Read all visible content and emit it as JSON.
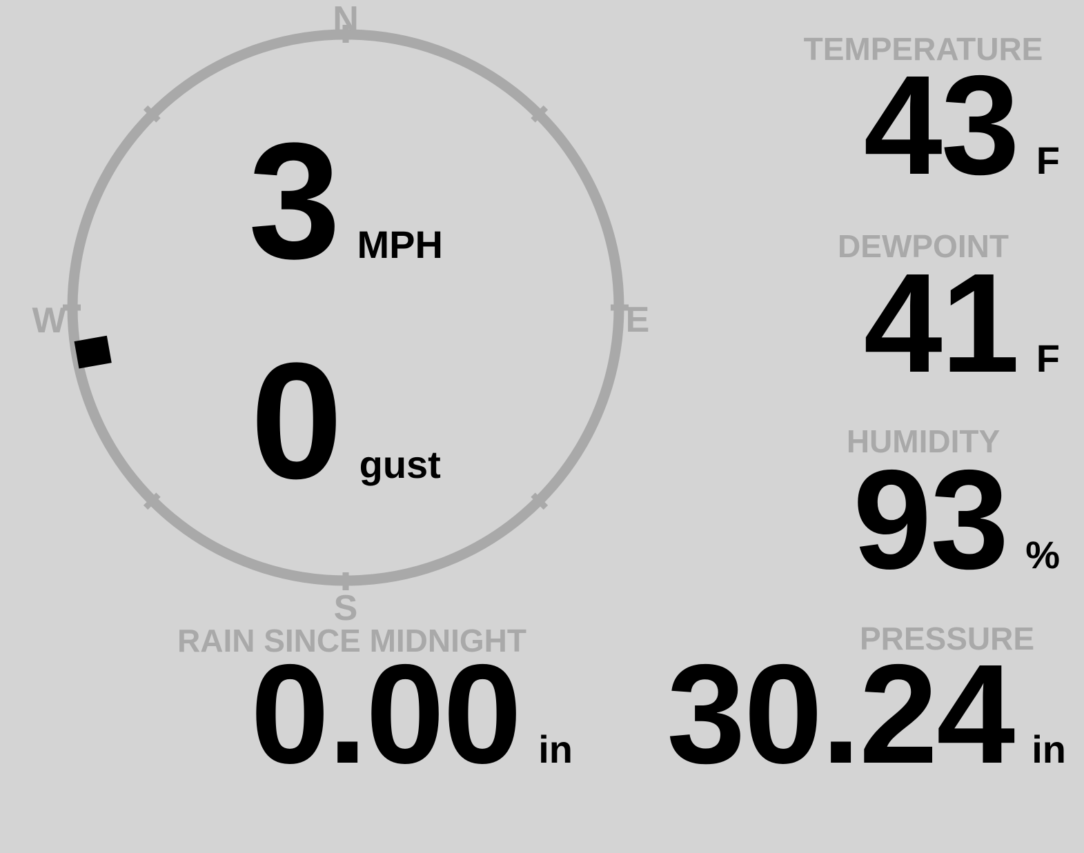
{
  "colors": {
    "background": "#d4d4d4",
    "muted_gray": "#a9a9a9",
    "value_black": "#000000"
  },
  "compass": {
    "cardinals": {
      "north": "N",
      "east": "E",
      "south": "S",
      "west": "W"
    },
    "wind_speed": "3",
    "wind_speed_unit": "MPH",
    "gust_value": "0",
    "gust_label": "gust",
    "direction_deg": 260
  },
  "readings": {
    "temperature": {
      "label": "TEMPERATURE",
      "value": "43",
      "unit": "F"
    },
    "dewpoint": {
      "label": "DEWPOINT",
      "value": "41",
      "unit": "F"
    },
    "humidity": {
      "label": "HUMIDITY",
      "value": "93",
      "unit": "%"
    },
    "rain": {
      "label": "RAIN SINCE MIDNIGHT",
      "value": "0.00",
      "unit": "in"
    },
    "pressure": {
      "label": "PRESSURE",
      "value": "30.24",
      "unit": "in"
    }
  }
}
